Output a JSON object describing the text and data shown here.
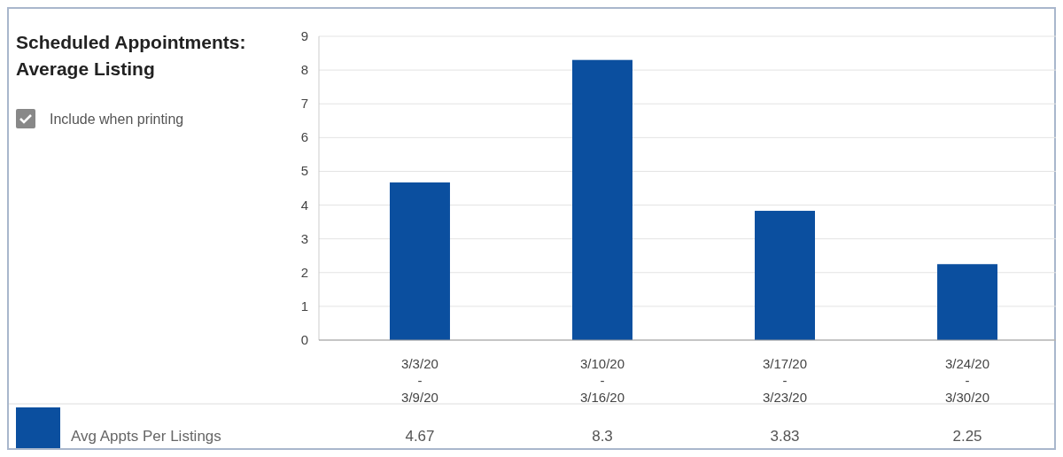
{
  "chart_data": {
    "type": "bar",
    "title": "Scheduled Appointments: Average Listing",
    "categories": [
      "3/3/20\n-\n3/9/20",
      "3/10/20\n-\n3/16/20",
      "3/17/20\n-\n3/23/20",
      "3/24/20\n-\n3/30/20"
    ],
    "series": [
      {
        "name": "Avg Appts Per Listings",
        "color": "#0b4f9f",
        "values": [
          4.67,
          8.3,
          3.83,
          2.25
        ]
      }
    ],
    "ylim": [
      0,
      9
    ],
    "yticks": [
      0,
      1,
      2,
      3,
      4,
      5,
      6,
      7,
      8,
      9
    ],
    "grid": "y",
    "legend": "bottom",
    "data_labels": true,
    "annotations": [
      "Include when printing"
    ]
  }
}
